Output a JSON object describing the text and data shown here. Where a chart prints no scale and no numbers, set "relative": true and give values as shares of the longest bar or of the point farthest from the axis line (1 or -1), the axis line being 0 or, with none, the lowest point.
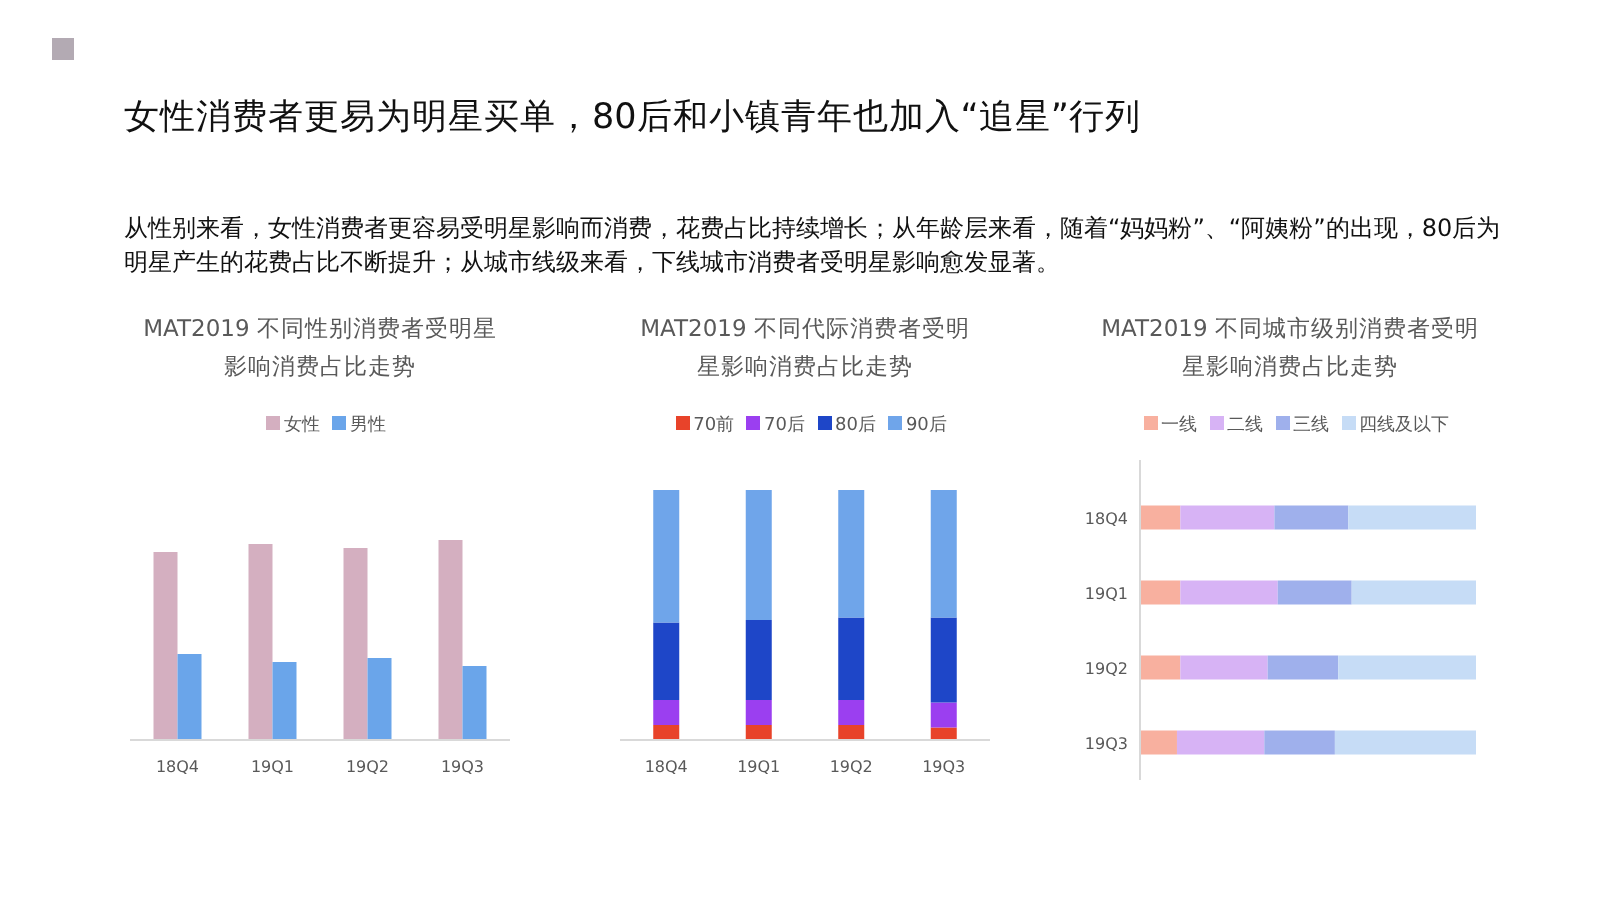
{
  "chart_data": [
    {
      "type": "other",
      "title": "女性消费者更易为明星买单，80后和小镇青年也加入“追星”行列",
      "subtitle": "从性别来看，女性消费者更容易受明星影响而消费，花费占比持续增长；从年龄层来看，随着“妈妈粉”、“阿姨粉”的出现，80后为明星产生的花费占比不断提升；从城市线级来看，下线城市消费者受明星影响愈发显著。"
    },
    {
      "type": "bar",
      "title": "MAT2019 不同性别消费者受明星影响消费占比走势",
      "relative": true,
      "legend": "top",
      "categories": [
        "18Q4",
        "19Q1",
        "19Q2",
        "19Q3"
      ],
      "series": [
        {
          "name": "女性",
          "color": "#d4afc0",
          "values": [
            0.94,
            0.98,
            0.96,
            1
          ]
        },
        {
          "name": "男性",
          "color": "#6aa5ea",
          "values": [
            0.43,
            0.39,
            0.41,
            0.37
          ]
        }
      ]
    },
    {
      "type": "bar",
      "title": "MAT2019 不同代际消费者受明星影响消费占比走势",
      "relative": true,
      "stacked": true,
      "legend": "top",
      "categories": [
        "18Q4",
        "19Q1",
        "19Q2",
        "19Q3"
      ],
      "series": [
        {
          "name": "70前",
          "color": "#e8432a",
          "values": [
            0.06,
            0.06,
            0.06,
            0.05
          ]
        },
        {
          "name": "70后",
          "color": "#9b3ff0",
          "values": [
            0.1,
            0.1,
            0.1,
            0.1
          ]
        },
        {
          "name": "80后",
          "color": "#1e46c8",
          "values": [
            0.31,
            0.32,
            0.33,
            0.34
          ]
        },
        {
          "name": "90后",
          "color": "#6fa5ea",
          "values": [
            0.53,
            0.52,
            0.51,
            0.51
          ]
        }
      ]
    },
    {
      "type": "bar",
      "title": "MAT2019 不同城市级别消费者受明星影响消费占比走势",
      "relative": true,
      "stacked": true,
      "orientation": "horizontal",
      "legend": "top",
      "categories": [
        "18Q4",
        "19Q1",
        "19Q2",
        "19Q3"
      ],
      "series": [
        {
          "name": "一线",
          "color": "#f8b09f",
          "values": [
            0.12,
            0.12,
            0.12,
            0.11
          ]
        },
        {
          "name": "二线",
          "color": "#d7b3f5",
          "values": [
            0.28,
            0.29,
            0.26,
            0.26
          ]
        },
        {
          "name": "三线",
          "color": "#9fb0ec",
          "values": [
            0.22,
            0.22,
            0.21,
            0.21
          ]
        },
        {
          "name": "四线及以下",
          "color": "#c6dcf6",
          "values": [
            0.38,
            0.37,
            0.41,
            0.42
          ]
        }
      ]
    }
  ]
}
